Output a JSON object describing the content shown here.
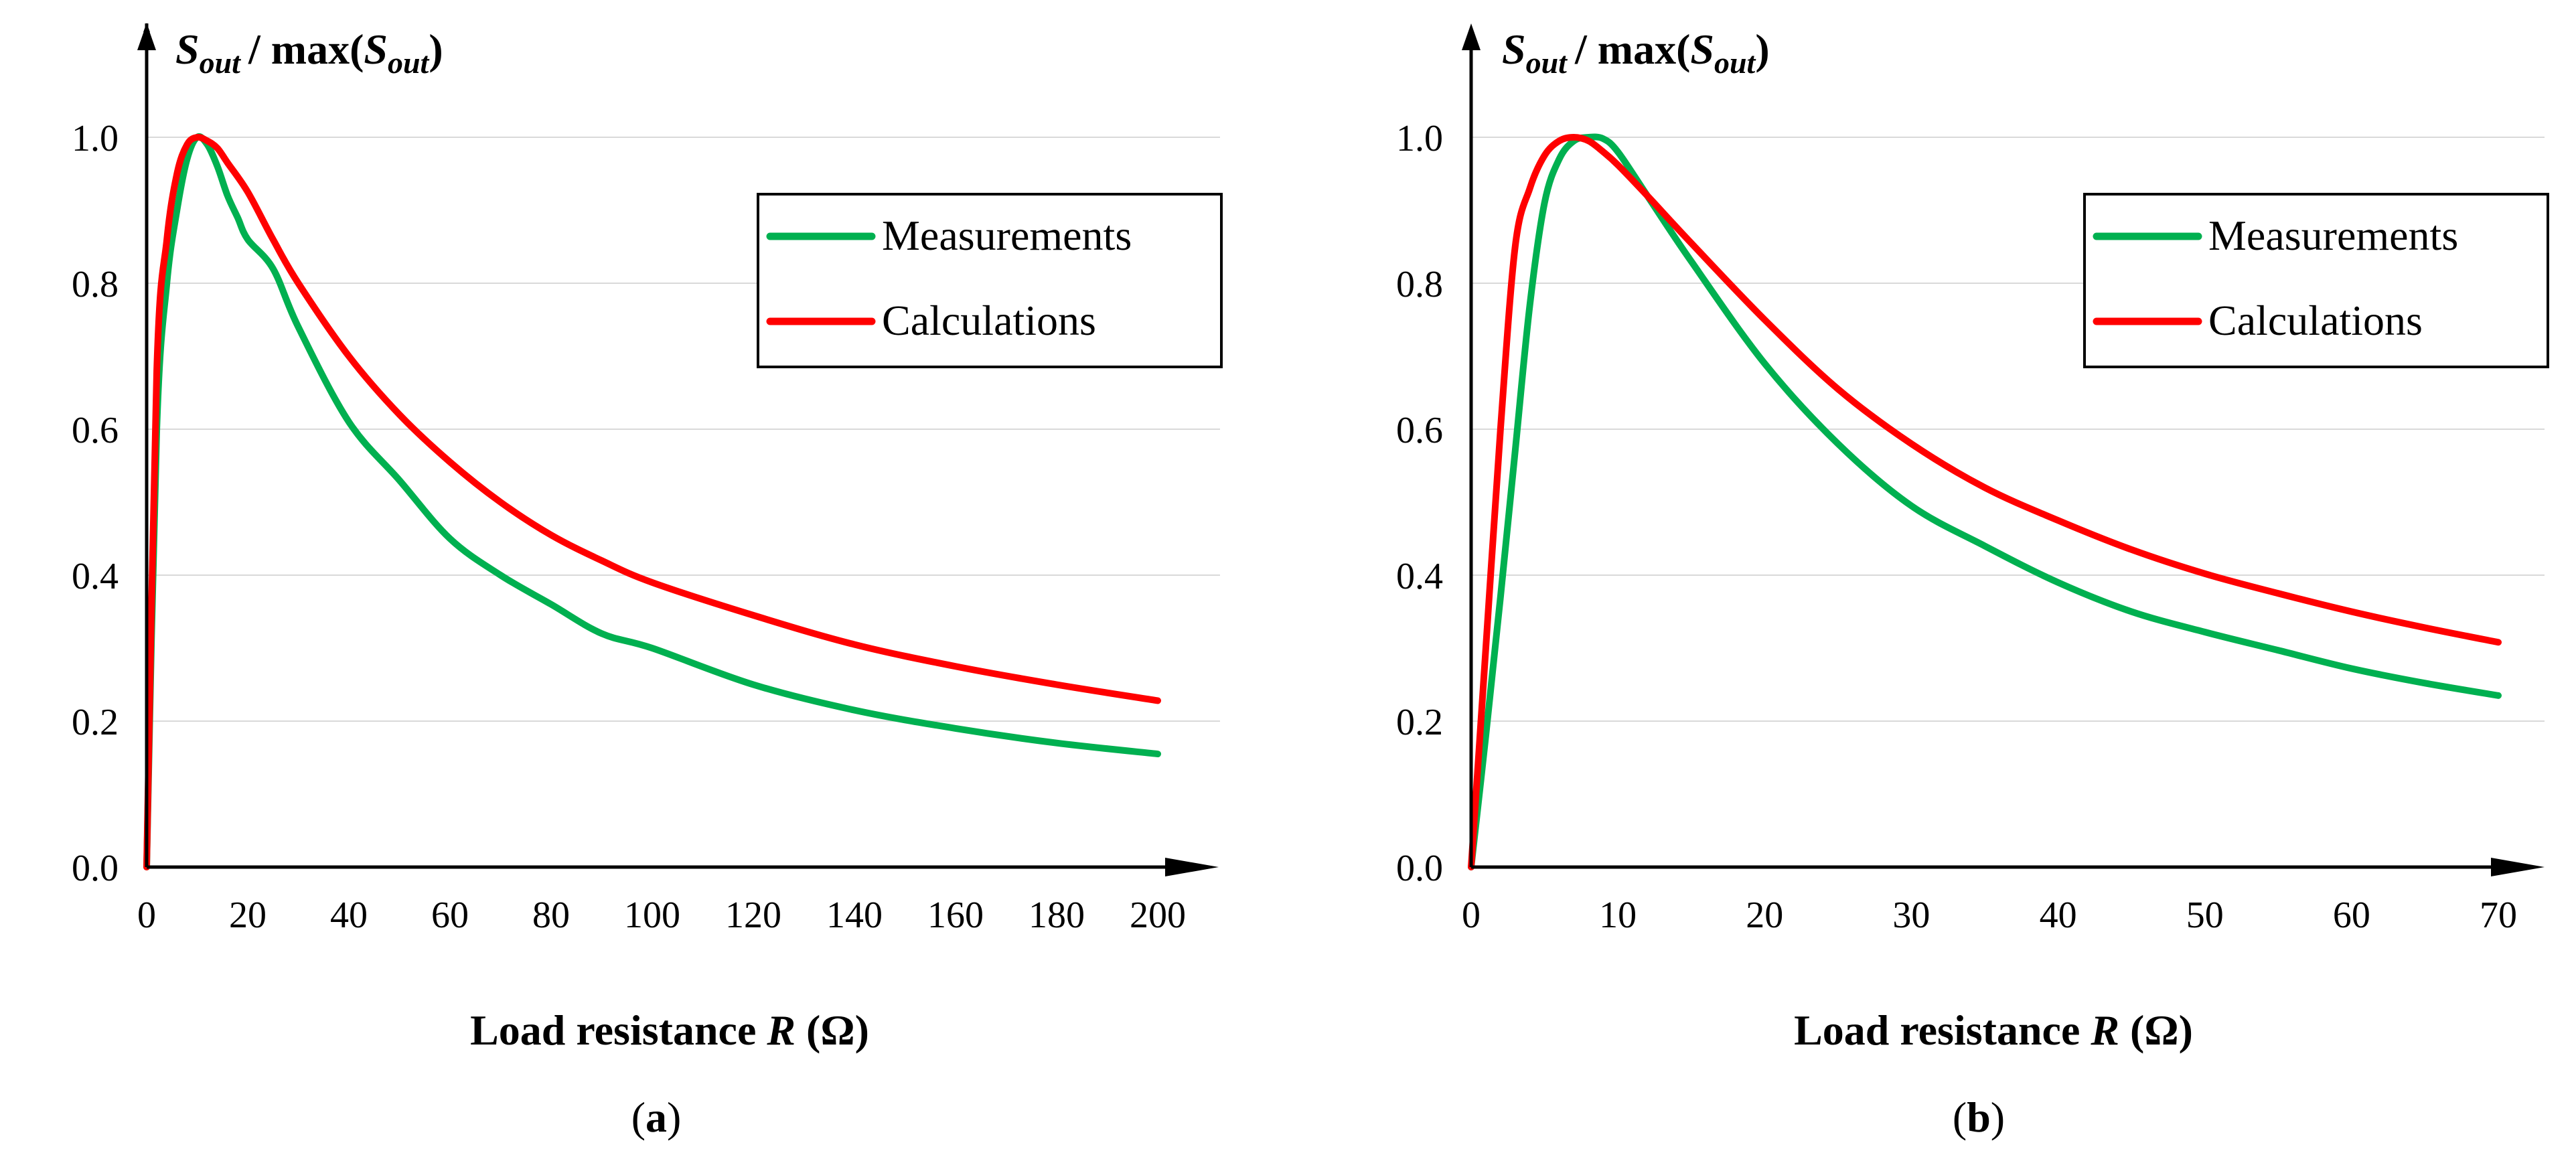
{
  "chart_data": [
    {
      "type": "line",
      "panel_label": "a",
      "ylabel": {
        "s": "S",
        "sub": "out",
        "mid": "/ max(",
        "s2": "S",
        "sub2": "out",
        "end": ")"
      },
      "xlabel": {
        "pre": "Load resistance ",
        "var": "R",
        "post": " (Ω)"
      },
      "xlim": [
        0,
        200
      ],
      "ylim": [
        0,
        1.0
      ],
      "xticks": [
        "0",
        "20",
        "40",
        "60",
        "80",
        "100",
        "120",
        "140",
        "160",
        "180",
        "200"
      ],
      "yticks": [
        "0.0",
        "0.2",
        "0.4",
        "0.6",
        "0.8",
        "1.0"
      ],
      "grid": true,
      "legend_position": "top-right",
      "series": [
        {
          "name": "Measurements",
          "color": "#00b050",
          "x": [
            0,
            2,
            4,
            6,
            8,
            10,
            12,
            14,
            16,
            18,
            20,
            25,
            30,
            40,
            50,
            60,
            70,
            80,
            90,
            100,
            120,
            140,
            160,
            180,
            200
          ],
          "y": [
            0,
            0.6,
            0.8,
            0.9,
            0.97,
            1.0,
            0.99,
            0.96,
            0.92,
            0.89,
            0.86,
            0.82,
            0.74,
            0.61,
            0.53,
            0.45,
            0.4,
            0.36,
            0.32,
            0.3,
            0.25,
            0.215,
            0.19,
            0.17,
            0.155
          ]
        },
        {
          "name": "Calculations",
          "color": "#ff0000",
          "x": [
            0,
            2,
            4,
            6,
            8,
            10,
            12,
            14,
            16,
            20,
            25,
            30,
            40,
            50,
            60,
            70,
            80,
            90,
            100,
            120,
            140,
            160,
            180,
            200
          ],
          "y": [
            0,
            0.68,
            0.86,
            0.95,
            0.99,
            1.0,
            0.995,
            0.985,
            0.965,
            0.925,
            0.86,
            0.8,
            0.7,
            0.62,
            0.555,
            0.5,
            0.455,
            0.42,
            0.39,
            0.345,
            0.305,
            0.275,
            0.25,
            0.228
          ]
        }
      ]
    },
    {
      "type": "line",
      "panel_label": "b",
      "ylabel": {
        "s": "S",
        "sub": "out",
        "mid": "/ max(",
        "s2": "S",
        "sub2": "out",
        "end": ")"
      },
      "xlabel": {
        "pre": "Load resistance ",
        "var": "R",
        "post": " (Ω)"
      },
      "xlim": [
        0,
        70
      ],
      "ylim": [
        0,
        1.0
      ],
      "xticks": [
        "0",
        "10",
        "20",
        "30",
        "40",
        "50",
        "60",
        "70"
      ],
      "yticks": [
        "0.0",
        "0.2",
        "0.4",
        "0.6",
        "0.8",
        "1.0"
      ],
      "grid": true,
      "legend_position": "top-right",
      "series": [
        {
          "name": "Measurements",
          "color": "#00b050",
          "x": [
            0,
            1,
            2,
            3,
            4,
            5,
            6,
            7,
            8,
            9,
            10,
            12,
            15,
            20,
            25,
            30,
            35,
            40,
            45,
            50,
            55,
            60,
            65,
            70
          ],
          "y": [
            0,
            0.18,
            0.37,
            0.57,
            0.77,
            0.91,
            0.97,
            0.995,
            1.0,
            0.998,
            0.98,
            0.92,
            0.83,
            0.69,
            0.58,
            0.495,
            0.44,
            0.39,
            0.35,
            0.322,
            0.297,
            0.272,
            0.252,
            0.235
          ]
        },
        {
          "name": "Calculations",
          "color": "#ff0000",
          "x": [
            0,
            1,
            2,
            3,
            4,
            5,
            6,
            7,
            8,
            9,
            10,
            12,
            15,
            20,
            25,
            30,
            35,
            40,
            45,
            50,
            55,
            60,
            65,
            70
          ],
          "y": [
            0,
            0.3,
            0.6,
            0.85,
            0.93,
            0.975,
            0.995,
            1.0,
            0.995,
            0.98,
            0.962,
            0.92,
            0.855,
            0.75,
            0.655,
            0.58,
            0.52,
            0.475,
            0.435,
            0.402,
            0.375,
            0.35,
            0.328,
            0.308
          ]
        }
      ]
    }
  ]
}
